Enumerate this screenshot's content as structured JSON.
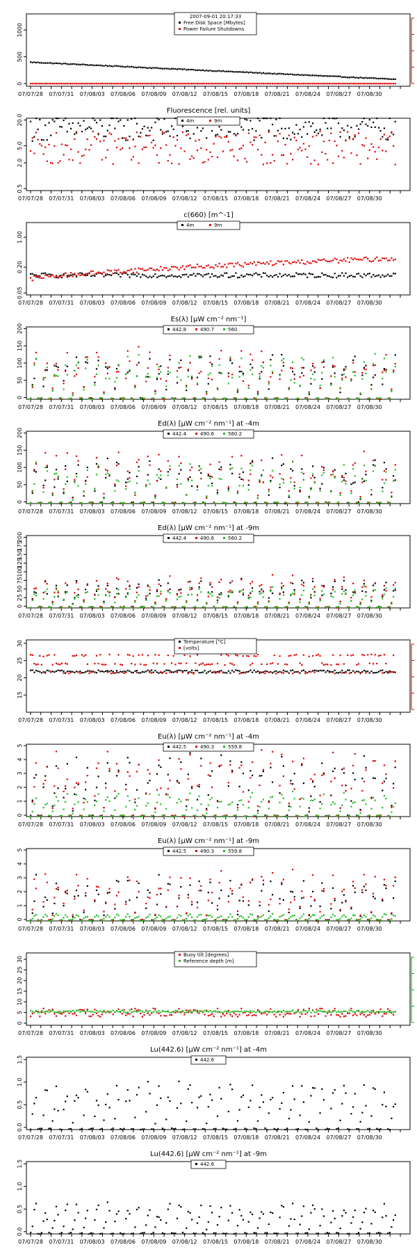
{
  "colors": {
    "black": "#000000",
    "red": "#e00000",
    "green": "#22bb22"
  },
  "x_ticks": [
    "07/07/28",
    "07/07/31",
    "07/08/03",
    "07/08/06",
    "07/08/09",
    "07/08/12",
    "07/08/15",
    "07/08/18",
    "07/08/21",
    "07/08/24",
    "07/08/27",
    "07/08/30"
  ],
  "chart_data": [
    {
      "id": "p1",
      "type": "scatter",
      "title": "",
      "legend_title": "2007-09-01 20:17:33",
      "ylim": [
        -50,
        1300
      ],
      "yticks": [
        0,
        500,
        1000
      ],
      "right_axis": "red",
      "series": [
        {
          "name": "Free Disk Space [Mbytes]",
          "color": "black",
          "pattern": "trend",
          "from": 400,
          "to": 80
        },
        {
          "name": "Power Failure Shutdowns",
          "color": "red",
          "pattern": "flat",
          "level": 0
        }
      ]
    },
    {
      "id": "p2",
      "type": "scatter",
      "title": "Fluorescence [rel. units]",
      "log": true,
      "ylim": [
        0.45,
        22
      ],
      "yticks": [
        0.5,
        2.0,
        5.0,
        20.0
      ],
      "ytick_labels": [
        "0.5",
        "2.0",
        "5.0",
        "20.0"
      ],
      "series": [
        {
          "name": "4m",
          "color": "black",
          "pattern": "noisy",
          "level": 13,
          "amp": 0.35
        },
        {
          "name": "9m",
          "color": "red",
          "pattern": "noisy",
          "level": 4.5,
          "amp": 0.45
        }
      ]
    },
    {
      "id": "p3",
      "type": "scatter",
      "title": "c(660) [m^-1]",
      "log": true,
      "ylim": [
        0.045,
        2.2
      ],
      "yticks": [
        0.05,
        0.2,
        1.0
      ],
      "ytick_labels": [
        "0.05",
        "0.20",
        "1.00"
      ],
      "series": [
        {
          "name": "4m",
          "color": "black",
          "pattern": "trend",
          "from": 0.13,
          "to": 0.13
        },
        {
          "name": "9m",
          "color": "red",
          "pattern": "trend",
          "from": 0.11,
          "to": 0.32
        }
      ]
    },
    {
      "id": "p4",
      "type": "scatter",
      "title": "Es(λ) [µW cm⁻² nm⁻¹]",
      "ylim": [
        -5,
        205
      ],
      "yticks": [
        0,
        50,
        100,
        150,
        200
      ],
      "series": [
        {
          "name": "442.8",
          "color": "black",
          "pattern": "diurnal",
          "peak": 120
        },
        {
          "name": "490.7",
          "color": "red",
          "pattern": "diurnal",
          "peak": 135
        },
        {
          "name": "560",
          "color": "green",
          "pattern": "diurnal",
          "peak": 120
        }
      ]
    },
    {
      "id": "p5",
      "type": "scatter",
      "title": "Ed(λ) [µW cm⁻² nm⁻¹] at -4m",
      "ylim": [
        -5,
        205
      ],
      "yticks": [
        0,
        50,
        100,
        150,
        200
      ],
      "series": [
        {
          "name": "442.4",
          "color": "black",
          "pattern": "diurnal",
          "peak": 120
        },
        {
          "name": "490.6",
          "color": "red",
          "pattern": "diurnal",
          "peak": 140
        },
        {
          "name": "560.2",
          "color": "green",
          "pattern": "diurnal",
          "peak": 110
        }
      ]
    },
    {
      "id": "p6",
      "type": "scatter",
      "title": "Ed(λ) [µW cm⁻² nm⁻¹] at -9m",
      "ylim": [
        -5,
        205
      ],
      "yticks": [
        0,
        25,
        50,
        75,
        100,
        125,
        150,
        175,
        200
      ],
      "series": [
        {
          "name": "442.4",
          "color": "black",
          "pattern": "diurnal",
          "peak": 75
        },
        {
          "name": "490.6",
          "color": "red",
          "pattern": "diurnal",
          "peak": 85
        },
        {
          "name": "560.2",
          "color": "green",
          "pattern": "diurnal",
          "peak": 55
        }
      ]
    },
    {
      "id": "p7",
      "type": "scatter",
      "title": "",
      "ylim": [
        10,
        31
      ],
      "yticks": [
        15,
        20,
        25,
        30
      ],
      "right_axis": "red",
      "series": [
        {
          "name": "Temperature [°C]",
          "color": "black",
          "pattern": "noisy",
          "level": 21.8,
          "amp": 0.02
        },
        {
          "name": "[volts]",
          "color": "red",
          "pattern": "bands",
          "levels": [
            26.5,
            24.0,
            21.5
          ]
        }
      ]
    },
    {
      "id": "p8",
      "type": "scatter",
      "title": "Eu(λ) [µW cm⁻² nm⁻¹] at -4m",
      "ylim": [
        -0.1,
        5.1
      ],
      "yticks": [
        0,
        1,
        2,
        3,
        4,
        5
      ],
      "series": [
        {
          "name": "442.5",
          "color": "black",
          "pattern": "diurnal",
          "peak": 4.2
        },
        {
          "name": "490.3",
          "color": "red",
          "pattern": "diurnal",
          "peak": 4.4
        },
        {
          "name": "559.8",
          "color": "green",
          "pattern": "diurnal",
          "peak": 1.6
        }
      ]
    },
    {
      "id": "p9",
      "type": "scatter",
      "title": "Eu(λ) [µW cm⁻² nm⁻¹] at -9m",
      "ylim": [
        -0.1,
        5.1
      ],
      "yticks": [
        0,
        1,
        2,
        3,
        4,
        5
      ],
      "series": [
        {
          "name": "442.5",
          "color": "black",
          "pattern": "diurnal",
          "peak": 3.0
        },
        {
          "name": "490.3",
          "color": "red",
          "pattern": "diurnal",
          "peak": 3.3
        },
        {
          "name": "559.8",
          "color": "green",
          "pattern": "diurnal",
          "peak": 0.4
        }
      ]
    },
    {
      "id": "p10",
      "type": "scatter",
      "title": "",
      "ylim": [
        -1,
        33
      ],
      "yticks": [
        0,
        5,
        10,
        15,
        20,
        25,
        30
      ],
      "right_axis": "green",
      "series": [
        {
          "name": "Buoy tilt [degrees]",
          "color": "red",
          "pattern": "noisy",
          "level": 5,
          "amp": 0.4
        },
        {
          "name": "Reference depth [m]",
          "color": "green",
          "pattern": "noisy",
          "level": 5.5,
          "amp": 0.1
        }
      ]
    },
    {
      "id": "p11",
      "type": "scatter",
      "title": "Lu(442.6) [µW cm⁻² nm⁻¹] at -4m",
      "ylim": [
        -0.05,
        1.55
      ],
      "yticks": [
        0,
        0.5,
        1.0,
        1.5
      ],
      "ytick_labels": [
        "0.0",
        "0.5",
        "1.0",
        "1.5"
      ],
      "series": [
        {
          "name": "442.6",
          "color": "black",
          "pattern": "diurnal",
          "peak": 1.0
        }
      ]
    },
    {
      "id": "p12",
      "type": "scatter",
      "title": "Lu(442.6) [µW cm⁻² nm⁻¹] at -9m",
      "ylim": [
        -0.05,
        1.55
      ],
      "yticks": [
        0,
        0.5,
        1.0,
        1.5
      ],
      "ytick_labels": [
        "0.0",
        "0.5",
        "1.0",
        "1.5"
      ],
      "series": [
        {
          "name": "442.6",
          "color": "black",
          "pattern": "diurnal",
          "peak": 0.6
        }
      ]
    }
  ]
}
